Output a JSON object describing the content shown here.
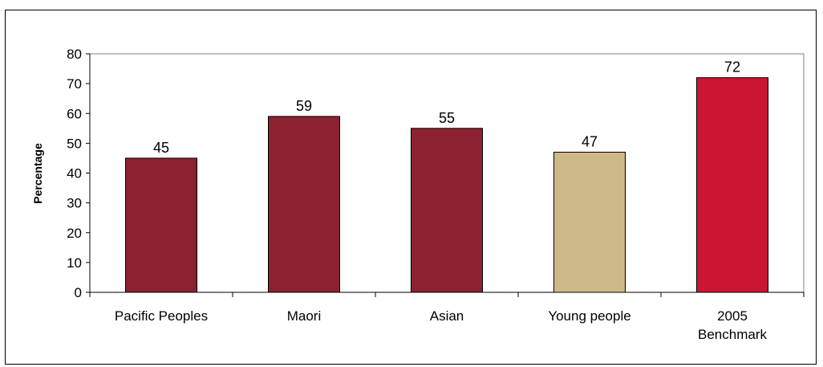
{
  "chart_data": {
    "type": "bar",
    "categories": [
      [
        "Pacific Peoples"
      ],
      [
        "Maori"
      ],
      [
        "Asian"
      ],
      [
        "Young people"
      ],
      [
        "2005",
        "Benchmark"
      ]
    ],
    "values": [
      45,
      59,
      55,
      47,
      72
    ],
    "bar_colors": [
      "#8B2131",
      "#8B2131",
      "#8B2131",
      "#CDB987",
      "#CC1433"
    ],
    "ylabel": "Percentage",
    "ylim": [
      0,
      80
    ],
    "yticks": [
      0,
      10,
      20,
      30,
      40,
      50,
      60,
      70,
      80
    ],
    "data_labels": true,
    "grid": false,
    "legend": "none"
  }
}
